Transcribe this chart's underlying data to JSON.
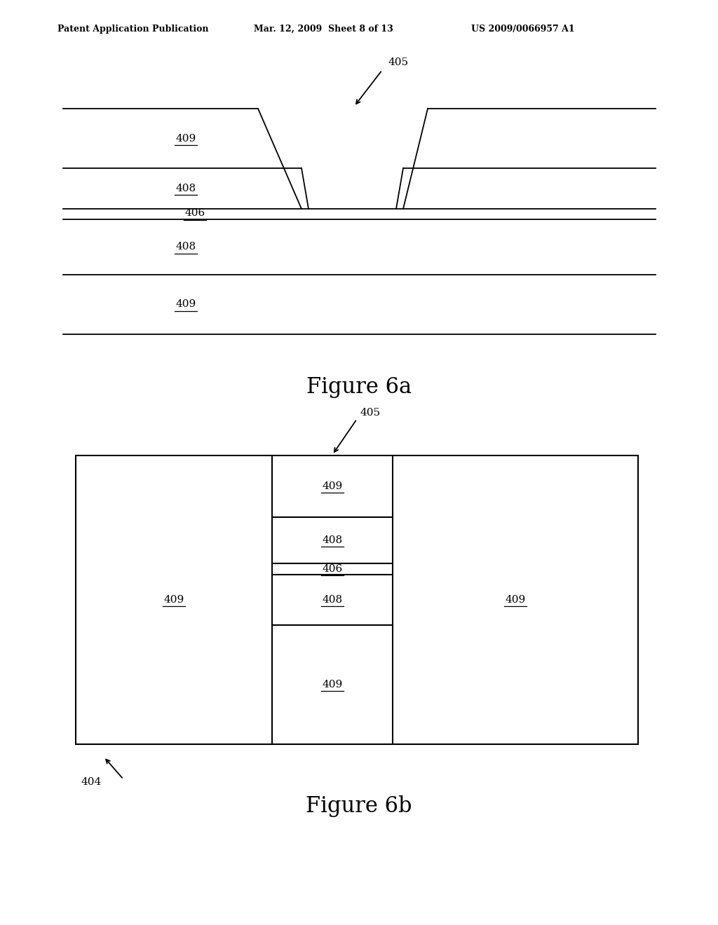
{
  "bg_color": "#ffffff",
  "line_color": "#000000",
  "text_color": "#000000",
  "header_left": "Patent Application Publication",
  "header_mid": "Mar. 12, 2009  Sheet 8 of 13",
  "header_right": "US 2009/0066957 A1",
  "fig6a_title": "Figure 6a",
  "fig6b_title": "Figure 6b",
  "label_405a": "405",
  "label_405b": "405",
  "label_409a_top": "409",
  "label_408a_upper": "408",
  "label_406a": "406",
  "label_408a_lower": "408",
  "label_409a_bottom": "409",
  "label_404": "404",
  "label_409b_left": "409",
  "label_409b_right": "409",
  "label_409b_inner_top": "409",
  "label_408b_inner_upper": "408",
  "label_406b_inner": "406",
  "label_408b_inner_lower": "408",
  "label_409b_inner_bottom": "409"
}
